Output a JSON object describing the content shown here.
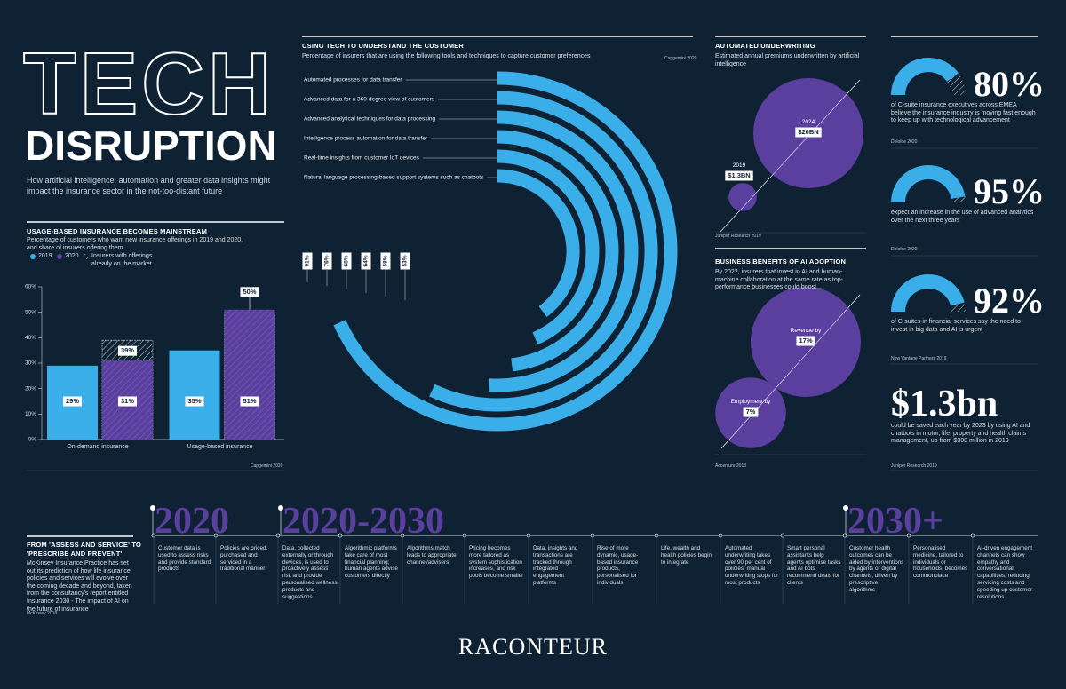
{
  "header": {
    "title_line1": "TECH",
    "title_line2": "DISRUPTION",
    "subtitle": "How artificial intelligence, automation and greater data insights might impact the insurance sector in the not-too-distant future"
  },
  "chart_data": [
    {
      "type": "bar",
      "title": "USAGE-BASED INSURANCE BECOMES MAINSTREAM",
      "subtitle": "Percentage of customers who want new insurance offerings in 2019 and 2020, and share of insurers offering them",
      "source": "Capgemini 2020",
      "categories": [
        "On-demand insurance",
        "Usage-based insurance"
      ],
      "series": [
        {
          "name": "2019",
          "color": "#3aaee8",
          "values": [
            29,
            35
          ],
          "value_labels": [
            "29%",
            "35%"
          ]
        },
        {
          "name": "2020",
          "color": "#5b3f9e",
          "values": [
            31,
            51
          ],
          "value_labels": [
            "31%",
            "51%"
          ]
        },
        {
          "name": "Insurers with offerings already on the market",
          "color": "#8a97a6",
          "values": [
            39,
            50
          ],
          "value_labels": [
            "39%",
            "50%"
          ]
        }
      ],
      "ylim": [
        0,
        60
      ],
      "yticks": [
        {
          "value": 0,
          "label": "0%"
        },
        {
          "value": 10,
          "label": "10%"
        },
        {
          "value": 20,
          "label": "20%"
        },
        {
          "value": 30,
          "label": "30%"
        },
        {
          "value": 40,
          "label": "40%"
        },
        {
          "value": 50,
          "label": "50%"
        },
        {
          "value": 60,
          "label": "60%"
        }
      ],
      "grid": false
    },
    {
      "type": "radial-bar",
      "title": "USING TECH TO UNDERSTAND THE CUSTOMER",
      "subtitle": "Percentage of insurers that are using the following tools and techniques to capture customer preferences",
      "source": "Capgemini 2020",
      "color": "#3aaee8",
      "categories": [
        "Automated processes for data transfer",
        "Advanced data for a 360-degree view of customers",
        "Advanced analytical techniques for data processing",
        "Intelligence process automation for data transfer",
        "Real-time insights from customer IoT devices",
        "Natural language processing-based support systems such as chatbots"
      ],
      "values": [
        91,
        76,
        68,
        64,
        58,
        53
      ],
      "value_labels": [
        "91%",
        "76%",
        "68%",
        "64%",
        "58%",
        "53%"
      ]
    },
    {
      "type": "bubble",
      "title": "AUTOMATED UNDERWRITING",
      "subtitle": "Estimated annual premiums underwritten by artificial intelligence",
      "source": "Juniper Research 2019",
      "color": "#5b3f9e",
      "categories": [
        "2019",
        "2024"
      ],
      "values": [
        1.3,
        20
      ],
      "value_labels": [
        "$1.3BN",
        "$20BN"
      ]
    },
    {
      "type": "bubble",
      "title": "BUSINESS BENEFITS OF AI ADOPTION",
      "subtitle": "By 2022, insurers that invest in AI and human-machine collaboration at the same rate as top-performance businesses could boost...",
      "source": "Accenture 2018",
      "color": "#5b3f9e",
      "categories": [
        "Employment by",
        "Revenue by"
      ],
      "values": [
        7,
        17
      ],
      "value_labels": [
        "7%",
        "17%"
      ]
    },
    {
      "type": "gauge",
      "color": "#3aaee8",
      "values": [
        80
      ],
      "value_labels": [
        "80%"
      ],
      "description": "of C-suite insurance executives across EMEA believe the insurance industry is moving fast enough to keep up with technological advancement",
      "source": "Deloitte 2020"
    },
    {
      "type": "gauge",
      "color": "#3aaee8",
      "values": [
        95
      ],
      "value_labels": [
        "95%"
      ],
      "description": "expect an increase in the use of advanced analytics over the next three years",
      "source": "Deloitte 2020"
    },
    {
      "type": "gauge",
      "color": "#3aaee8",
      "values": [
        92
      ],
      "value_labels": [
        "92%"
      ],
      "description": "of C-suites in financial services say the need to invest in big data and AI is urgent",
      "source": "New Vantage Partners 2019"
    }
  ],
  "stat": {
    "value_label": "$1.3bn",
    "description": "could be saved each year by 2023 by using AI and chatbots in motor, life, property and health claims management, up from $300 million in 2019",
    "source": "Juniper Research 2019"
  },
  "timeline": {
    "title": "FROM 'ASSESS AND SERVICE' TO 'PRESCRIBE AND PREVENT'",
    "description": "McKinsey Insurance Practice has set out its prediction of how life insurance policies and services will evolve over the coming decade and beyond, taken from the consultancy's report entitled Insurance 2030 - The impact of AI on the future of insurance",
    "source": "McKinsey 2018",
    "eras": [
      "2020",
      "2020-2030",
      "2030+"
    ],
    "items": [
      "Customer data is used to assess risks and provide standard products",
      "Policies are priced, purchased and serviced in a traditional manner",
      "Data, collected externally or through devices, is used to proactively assess risk and provide personalised wellness products and suggestions",
      "Algorithmic platforms take care of most financial planning; human agents advise customers directly",
      "Algorithms match leads to appropriate channel/advisers",
      "Pricing becomes more tailored as system sophistication increases, and risk pools become smaller",
      "Data, insights and transactions are tracked through integrated engagement platforms",
      "Rise of more dynamic, usage-based insurance products, personalised for individuals",
      "Life, wealth and health policies begin to integrate",
      "Automated underwriting takes over 90 per cent of policies; manual underwriting stops for most products",
      "Smart personal assistants help agents optimise tasks and AI bots recommend deals for clients",
      "Customer health outcomes can be aided by interventions by agents or digital channels, driven by prescriptive algorithms",
      "Personalised medicine, tailored to individuals or households, becomes commonplace",
      "AI-driven engagement channels can show empathy and conversational capabilities, reducing servicing costs and speeding up customer resolutions"
    ]
  },
  "logo": "RACONTEUR"
}
